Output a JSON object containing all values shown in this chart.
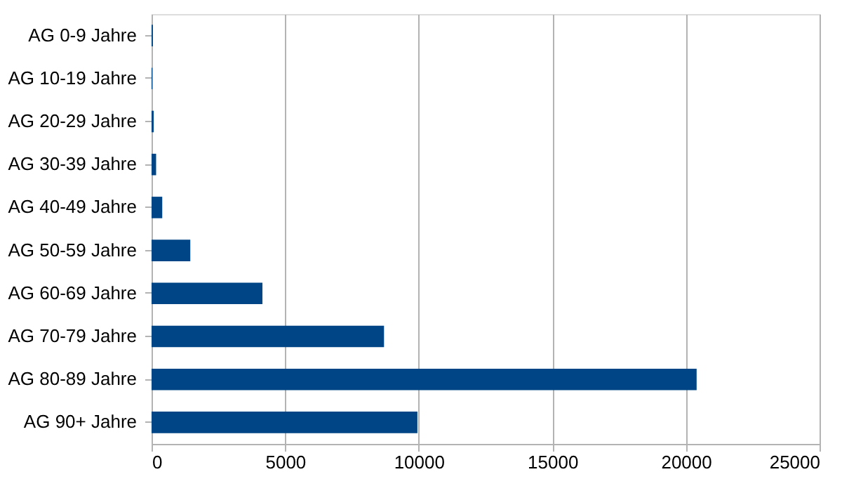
{
  "chart_data": {
    "type": "bar",
    "orientation": "horizontal",
    "categories": [
      "AG 0-9 Jahre",
      "AG 10-19 Jahre",
      "AG 20-29 Jahre",
      "AG 30-39 Jahre",
      "AG 40-49 Jahre",
      "AG 50-59 Jahre",
      "AG 60-69 Jahre",
      "AG 70-79 Jahre",
      "AG 80-89 Jahre",
      "AG 90+ Jahre"
    ],
    "values": [
      50,
      30,
      80,
      170,
      400,
      1450,
      4150,
      8700,
      20400,
      9950
    ],
    "color": "#004586",
    "xlim": [
      0,
      25000
    ],
    "xticks": [
      0,
      5000,
      10000,
      15000,
      20000,
      25000
    ],
    "grid": "x"
  }
}
